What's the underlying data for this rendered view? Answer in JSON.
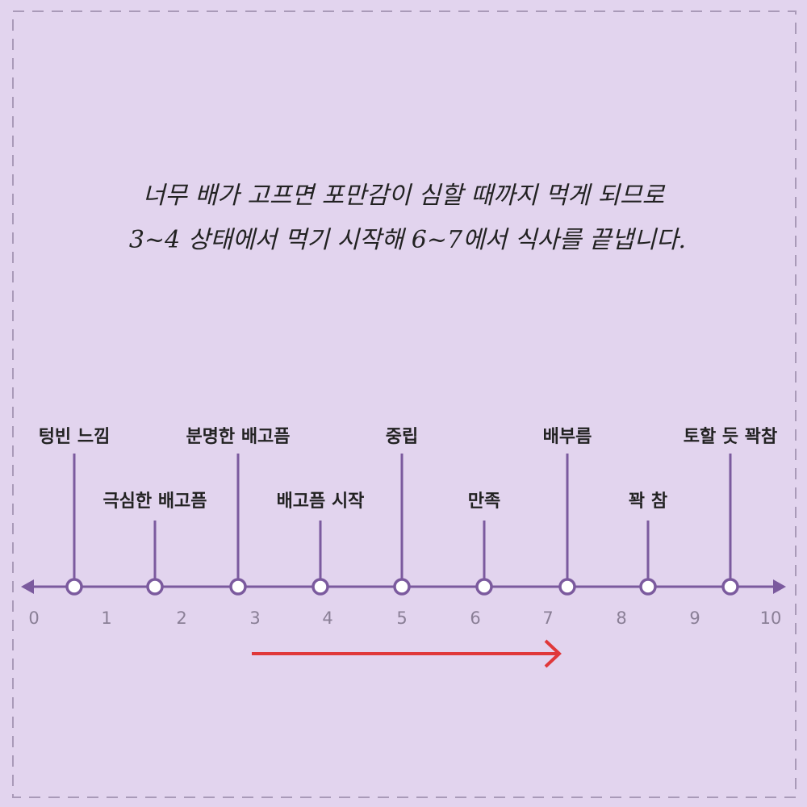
{
  "caption": {
    "lines": [
      "너무 배가 고프면 포만감이 심할 때까지 먹게 되므로",
      "3~4 상태에서 먹기 시작해 6~7에서 식사를 끝냅니다."
    ]
  },
  "scale": [
    0,
    1,
    2,
    3,
    4,
    5,
    6,
    7,
    8,
    9,
    10
  ],
  "nodes": [
    {
      "label": "텅빈 느낌"
    },
    {
      "label": "극심한 배고픔"
    },
    {
      "label": "분명한 배고픔"
    },
    {
      "label": "배고픔 시작"
    },
    {
      "label": "중립"
    },
    {
      "label": "만족"
    },
    {
      "label": "배부름"
    },
    {
      "label": "꽉 참"
    },
    {
      "label": "토할 듯 꽉참"
    }
  ]
}
